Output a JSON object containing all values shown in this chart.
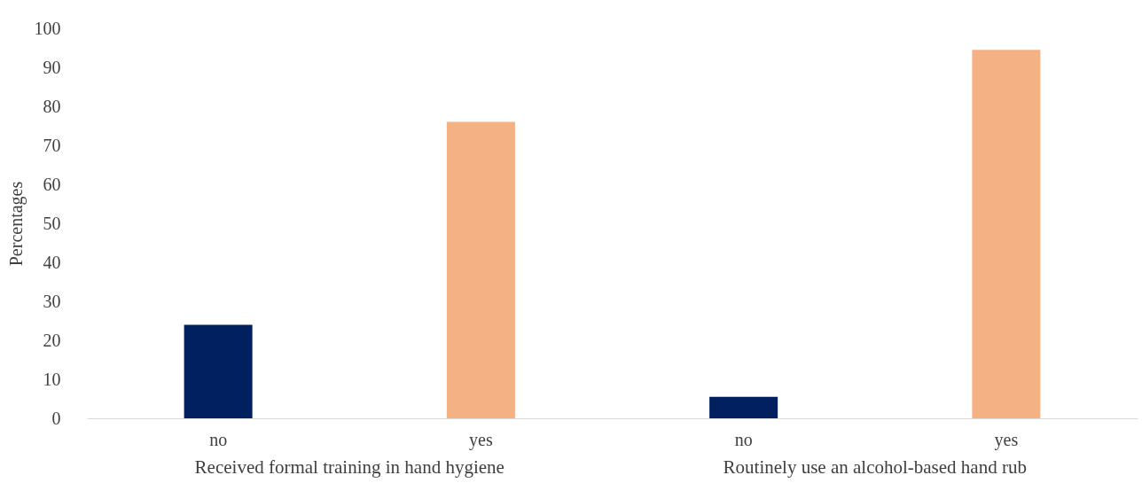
{
  "chart_data": {
    "type": "bar",
    "categories": [
      "no",
      "yes",
      "no",
      "yes"
    ],
    "values": [
      24,
      76,
      5.5,
      94.5
    ],
    "colors": [
      "#002060",
      "#f4b183",
      "#002060",
      "#f4b183"
    ],
    "ylabel": "Percentages",
    "ylim": [
      0,
      100
    ],
    "yticks": [
      0,
      10,
      20,
      30,
      40,
      50,
      60,
      70,
      80,
      90,
      100
    ],
    "annotations": [
      "Received formal training in hand hygiene",
      "Routinely use an alcohol-based hand rub"
    ]
  }
}
